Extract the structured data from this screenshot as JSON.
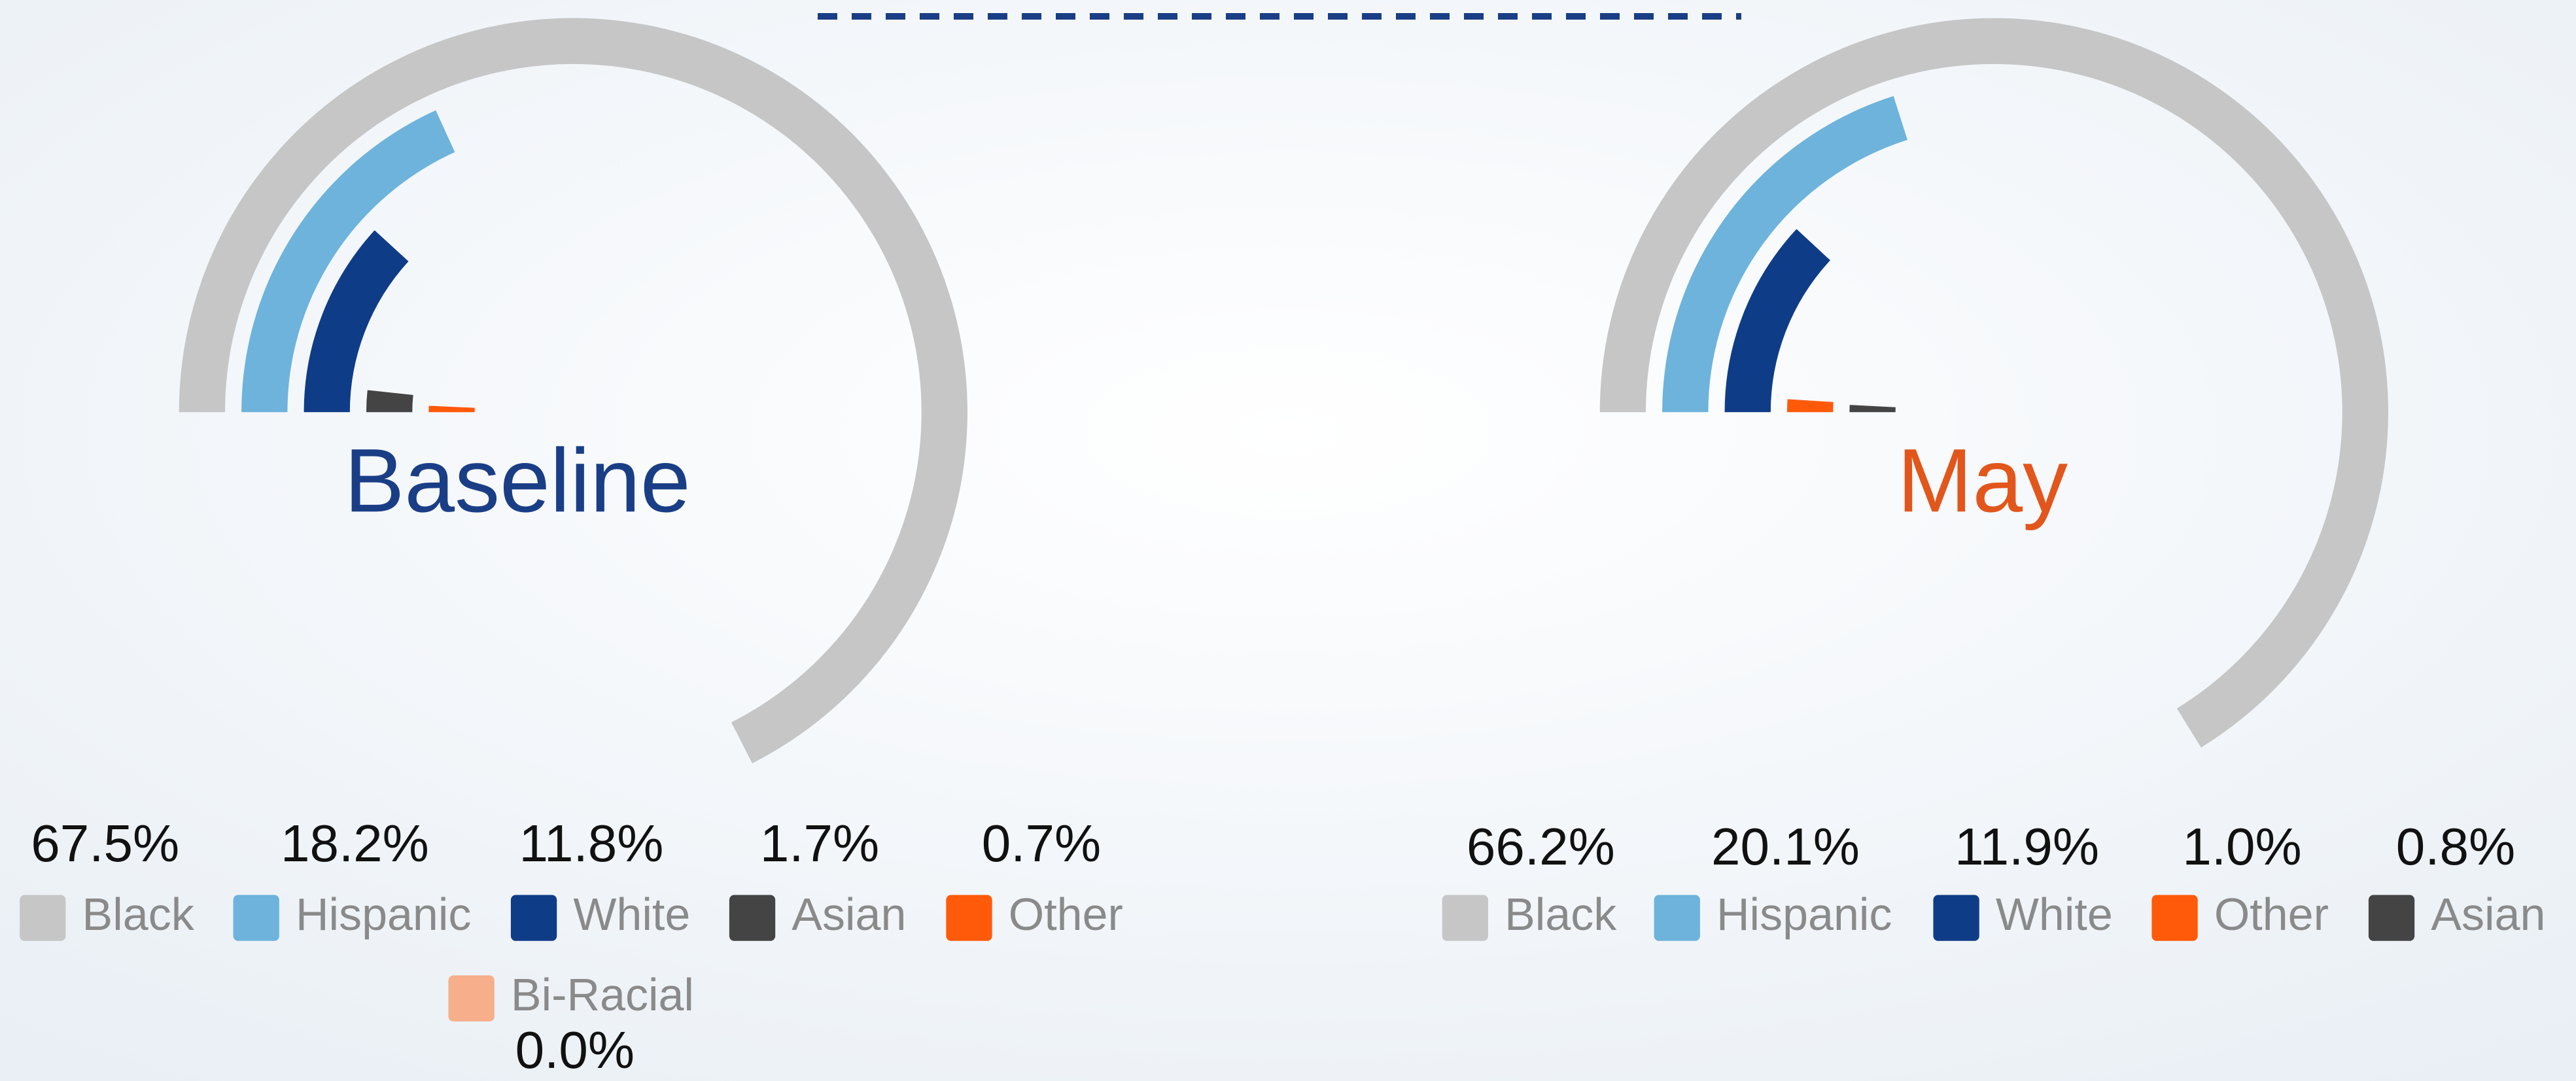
{
  "chart_data": [
    {
      "type": "radial_bar",
      "title": "Baseline",
      "categories": [
        "Black",
        "Hispanic",
        "White",
        "Asian",
        "Other",
        "Bi-Racial"
      ],
      "values": [
        67.5,
        18.2,
        11.8,
        1.7,
        0.7,
        0.0
      ],
      "value_labels": [
        "67.5%",
        "18.2%",
        "11.8%",
        "1.7%",
        "0.7%",
        "0.0%"
      ],
      "colors": [
        "#c6c6c6",
        "#6db3dc",
        "#0f3c87",
        "#444444",
        "#ff5a0a",
        "#f7ae8b"
      ],
      "title_color": "#1a3e86"
    },
    {
      "type": "radial_bar",
      "title": "May",
      "categories": [
        "Black",
        "Hispanic",
        "White",
        "Other",
        "Asian"
      ],
      "values": [
        66.2,
        20.1,
        11.9,
        1.0,
        0.8
      ],
      "value_labels": [
        "66.2%",
        "20.1%",
        "11.9%",
        "1.0%",
        "0.8%"
      ],
      "colors": [
        "#c6c6c6",
        "#6db3dc",
        "#0f3c87",
        "#ff5a0a",
        "#444444"
      ],
      "title_color": "#e2561c"
    }
  ]
}
